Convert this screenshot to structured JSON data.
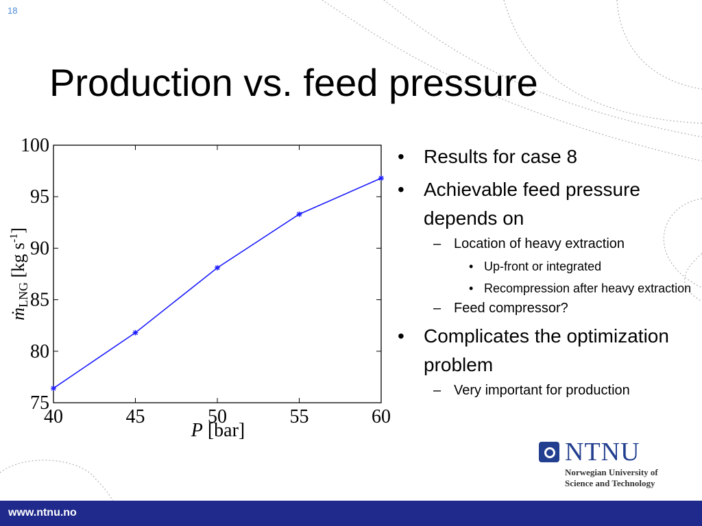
{
  "slide": {
    "number": "18",
    "title": "Production vs. feed pressure"
  },
  "bullets": [
    {
      "text": "Results for case 8",
      "children": []
    },
    {
      "text": "Achievable feed pressure depends on",
      "children": [
        {
          "text": "Location of heavy extraction",
          "children": [
            {
              "text": "Up-front or integrated"
            },
            {
              "text": "Recompression after heavy extraction"
            }
          ]
        },
        {
          "text": "Feed compressor?",
          "children": []
        }
      ]
    },
    {
      "text": "Complicates the optimization problem",
      "children": [
        {
          "text": "Very important for production",
          "children": []
        }
      ]
    }
  ],
  "logo": {
    "name": "NTNU",
    "subtitle_line1": "Norwegian University of",
    "subtitle_line2": "Science and Technology"
  },
  "footer": {
    "url": "www.ntnu.no"
  },
  "colors": {
    "series": "#1a1aff",
    "footer": "#1f2a8c",
    "brand": "#233f8f",
    "slide_number": "#4a8bd6"
  },
  "chart_data": {
    "type": "line",
    "title": "",
    "xlabel": "P [bar]",
    "ylabel": "ṁLNG [kg s-1]",
    "xlim": [
      40,
      60
    ],
    "ylim": [
      75,
      100
    ],
    "x_ticks": [
      40,
      45,
      50,
      55,
      60
    ],
    "y_ticks": [
      75,
      80,
      85,
      90,
      95,
      100
    ],
    "grid": false,
    "series": [
      {
        "x": [
          40,
          45,
          50,
          55,
          60
        ],
        "y": [
          76.4,
          81.8,
          88.1,
          93.3,
          96.8
        ],
        "marker": "asterisk"
      }
    ]
  }
}
